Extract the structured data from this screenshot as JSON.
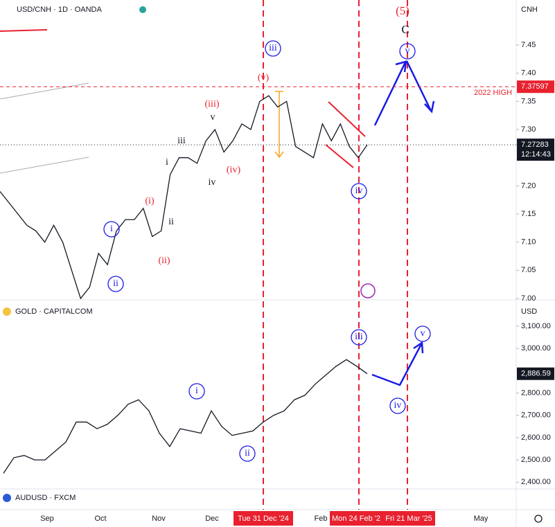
{
  "chart_data": [
    {
      "type": "line",
      "title": "USD/CNH · 1D · OANDA",
      "currency": "CNH",
      "color": "#131722",
      "values": [
        7.19,
        7.17,
        7.15,
        7.13,
        7.12,
        7.1,
        7.13,
        7.1,
        7.05,
        7.0,
        7.02,
        7.08,
        7.06,
        7.12,
        7.14,
        7.14,
        7.16,
        7.11,
        7.12,
        7.22,
        7.25,
        7.25,
        7.24,
        7.28,
        7.3,
        7.26,
        7.28,
        7.31,
        7.3,
        7.35,
        7.36,
        7.34,
        7.35,
        7.27,
        7.26,
        7.25,
        7.31,
        7.28,
        7.31,
        7.27,
        7.25,
        7.27283
      ],
      "ylim": [
        7.0,
        7.53
      ],
      "yticks": [
        7.45,
        {
          "value": 7.4,
          "label": "7.40"
        },
        7.35,
        {
          "value": 7.3,
          "label": "7.30"
        },
        {
          "value": 7.2,
          "label": "7.20"
        },
        7.15,
        {
          "value": 7.1,
          "label": "7.10"
        },
        7.05,
        {
          "value": 7.0,
          "label": "7.00"
        }
      ],
      "level": {
        "value": 7.37597,
        "name": "2022 HIGH"
      },
      "last_price": 7.27283,
      "countdown": "12:14:43",
      "annotations": [
        "(5)",
        "C",
        "iii",
        "v",
        "(v)",
        "(iii)",
        "v",
        "iii",
        "i",
        "(i)",
        "ii",
        "(ii)",
        "(iv)",
        "iv",
        "i",
        "ii",
        "iv"
      ]
    },
    {
      "type": "line",
      "title": "GOLD · CAPITALCOM",
      "currency": "USD",
      "color": "#131722",
      "values": [
        2440,
        2510,
        2520,
        2500,
        2500,
        2540,
        2580,
        2670,
        2670,
        2640,
        2660,
        2700,
        2750,
        2770,
        2720,
        2620,
        2560,
        2640,
        2630,
        2620,
        2720,
        2650,
        2610,
        2620,
        2630,
        2670,
        2700,
        2720,
        2770,
        2790,
        2840,
        2880,
        2920,
        2950,
        2920,
        2886.59
      ],
      "ylim": [
        2370,
        3190
      ],
      "yticks": [
        {
          "value": 3100,
          "label": "3,100.00"
        },
        {
          "value": 3000,
          "label": "3,000.00"
        },
        {
          "value": 2800,
          "label": "2,800.00"
        },
        {
          "value": 2700,
          "label": "2,700.00"
        },
        {
          "value": 2600,
          "label": "2,600.00"
        },
        {
          "value": 2500,
          "label": "2,500.00"
        },
        {
          "value": 2400,
          "label": "2,400.00"
        }
      ],
      "last_price": {
        "value": 2886.59,
        "label": "2,886.59"
      },
      "annotations": [
        "iii",
        "v",
        "i",
        "ii",
        "iv"
      ]
    }
  ],
  "third_pane": {
    "title": "AUDUSD · FXCM"
  },
  "time_axis": [
    "Sep",
    "Oct",
    "Nov",
    "Dec",
    "Tue 31 Dec '24",
    "Feb",
    "Mon 24 Feb '2",
    "Fri 21 Mar '25",
    "May"
  ]
}
